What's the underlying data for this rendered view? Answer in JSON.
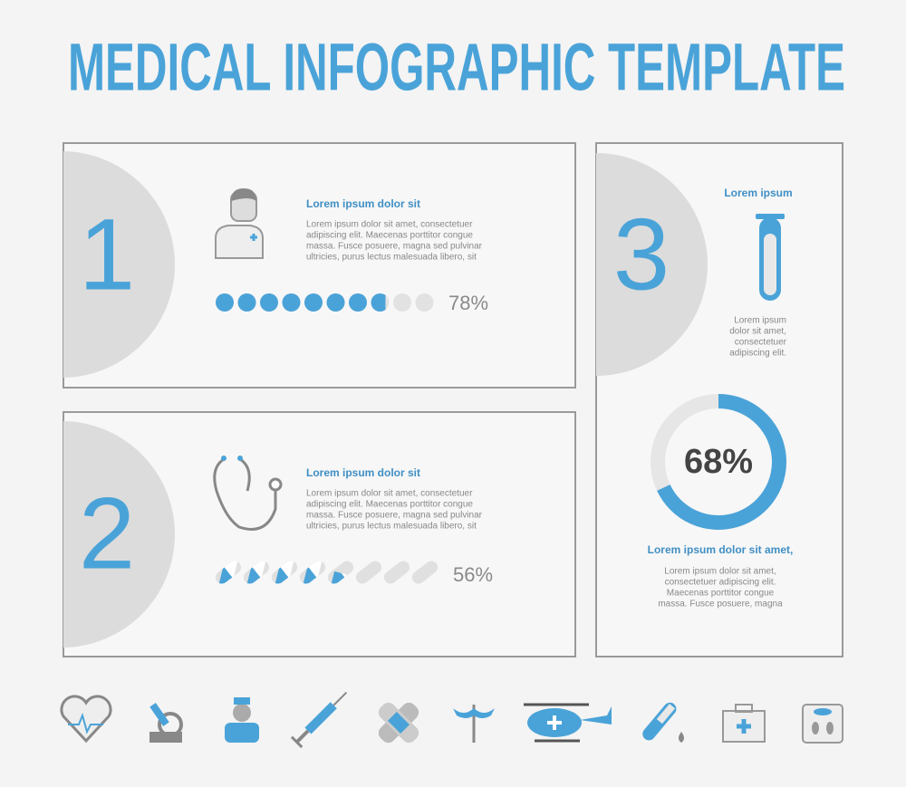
{
  "header": {
    "title": "MEDICAL INFOGRAPHIC TEMPLATE"
  },
  "panels": [
    {
      "number": "1",
      "heading": "Lorem ipsum dolor sit",
      "body": [
        "Lorem ipsum dolor sit amet, consectetuer",
        "adipiscing elit. Maecenas porttitor congue",
        "massa. Fusce posuere, magna sed pulvinar",
        "ultricies, purus lectus malesuada libero, sit"
      ],
      "percent": {
        "value": 78,
        "label": "78%"
      }
    },
    {
      "number": "2",
      "heading": "Lorem ipsum dolor sit",
      "body": [
        "Lorem ipsum dolor sit amet, consectetuer",
        "adipiscing elit. Maecenas porttitor congue",
        "massa. Fusce posuere, magna sed pulvinar",
        "ultricies, purus lectus malesuada libero, sit"
      ],
      "percent": {
        "value": 56,
        "label": "56%"
      }
    },
    {
      "number": "3",
      "top_heading": "Lorem ipsum",
      "top_body": [
        "Lorem ipsum",
        "dolor sit amet,",
        "consectetuer",
        "adipiscing elit."
      ],
      "percent": {
        "value": 68,
        "label": "68%"
      },
      "heading": "Lorem ipsum dolor sit amet,",
      "body": [
        "Lorem ipsum dolor sit amet,",
        "consectetuer adipiscing elit.",
        "Maecenas porttitor congue",
        "massa. Fusce posuere, magna"
      ]
    }
  ]
}
